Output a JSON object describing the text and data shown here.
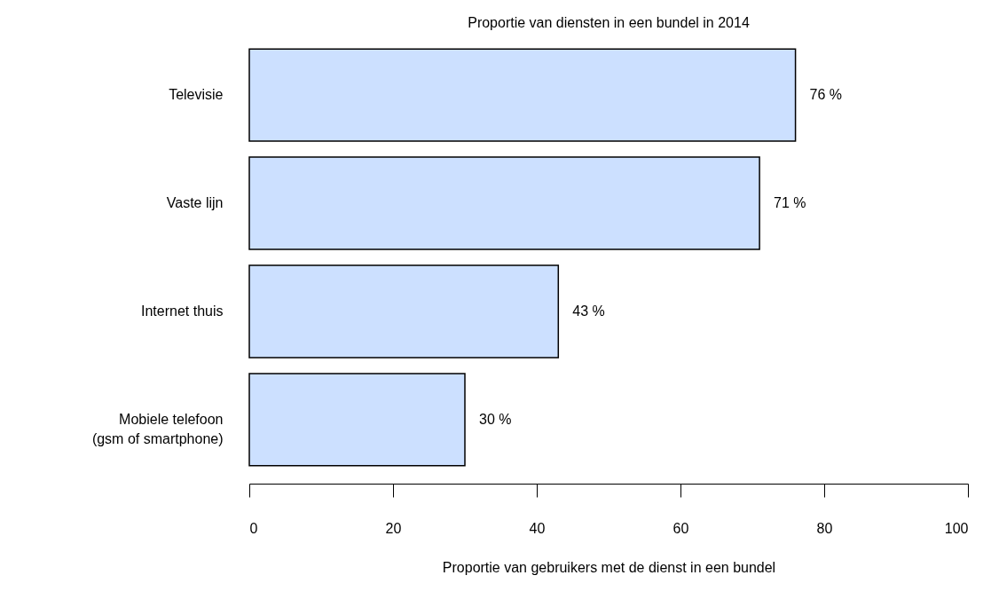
{
  "chart_data": {
    "type": "bar",
    "orientation": "horizontal",
    "title": "Proportie van diensten in een bundel in 2014",
    "xlabel": "Proportie van gebruikers met de dienst in een bundel",
    "categories": [
      "Televisie",
      "Vaste lijn",
      "Internet thuis",
      "Mobiele telefoon\n(gsm of smartphone)"
    ],
    "values": [
      76,
      71,
      43,
      30
    ],
    "value_labels": [
      "76 %",
      "71 %",
      "43 %",
      "30 %"
    ],
    "color": "#cce0ff",
    "xlim": [
      0,
      100
    ],
    "xticks": [
      0,
      20,
      40,
      60,
      80,
      100
    ]
  }
}
